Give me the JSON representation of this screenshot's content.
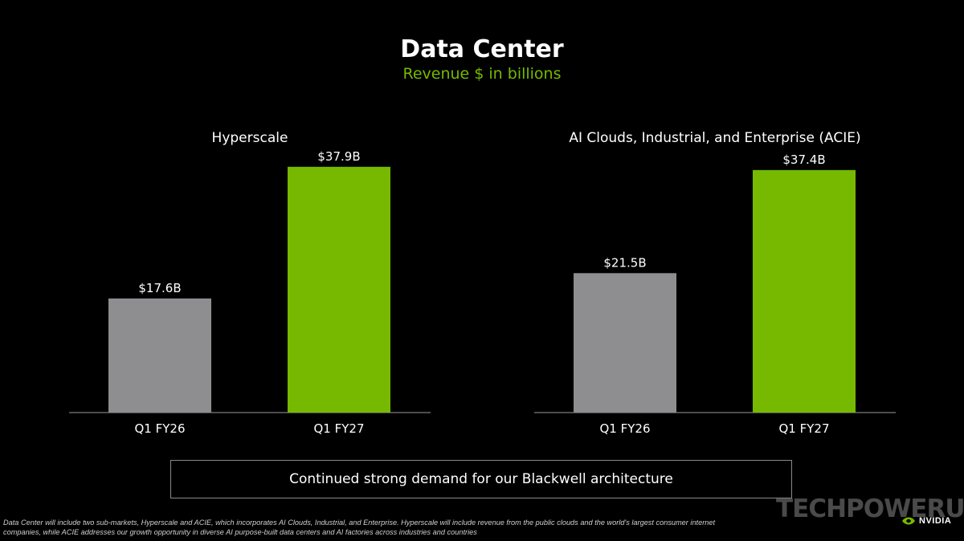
{
  "header": {
    "title": "Data Center",
    "subtitle": "Revenue $ in billions"
  },
  "colors": {
    "prior": "#8e8e90",
    "current": "#76b900",
    "axis": "#9a9a9a",
    "subtitle": "#76b900"
  },
  "chart_data": [
    {
      "type": "bar",
      "title": "Hyperscale",
      "categories": [
        "Q1 FY26",
        "Q1 FY27"
      ],
      "values": [
        17.6,
        37.9
      ],
      "data_labels": [
        "$17.6B",
        "$37.9B"
      ],
      "ylim": [
        0,
        38
      ],
      "grid": false
    },
    {
      "type": "bar",
      "title": "AI Clouds, Industrial, and Enterprise (ACIE)",
      "categories": [
        "Q1 FY26",
        "Q1 FY27"
      ],
      "values": [
        21.5,
        37.4
      ],
      "data_labels": [
        "$21.5B",
        "$37.4B"
      ],
      "ylim": [
        0,
        38
      ],
      "grid": false
    }
  ],
  "callout": "Continued strong demand for our Blackwell architecture",
  "footnote": "Data Center will include two sub-markets, Hyperscale and ACIE, which incorporates AI Clouds, Industrial, and Enterprise. Hyperscale will include revenue from the public clouds and the world's largest consumer internet companies, while ACIE addresses our growth opportunity in diverse AI purpose-built data centers and AI factories across industries and countries",
  "watermark": "TECHPOWERUP",
  "brand": {
    "name": "NVIDIA",
    "icon": "nvidia-eye-icon"
  }
}
